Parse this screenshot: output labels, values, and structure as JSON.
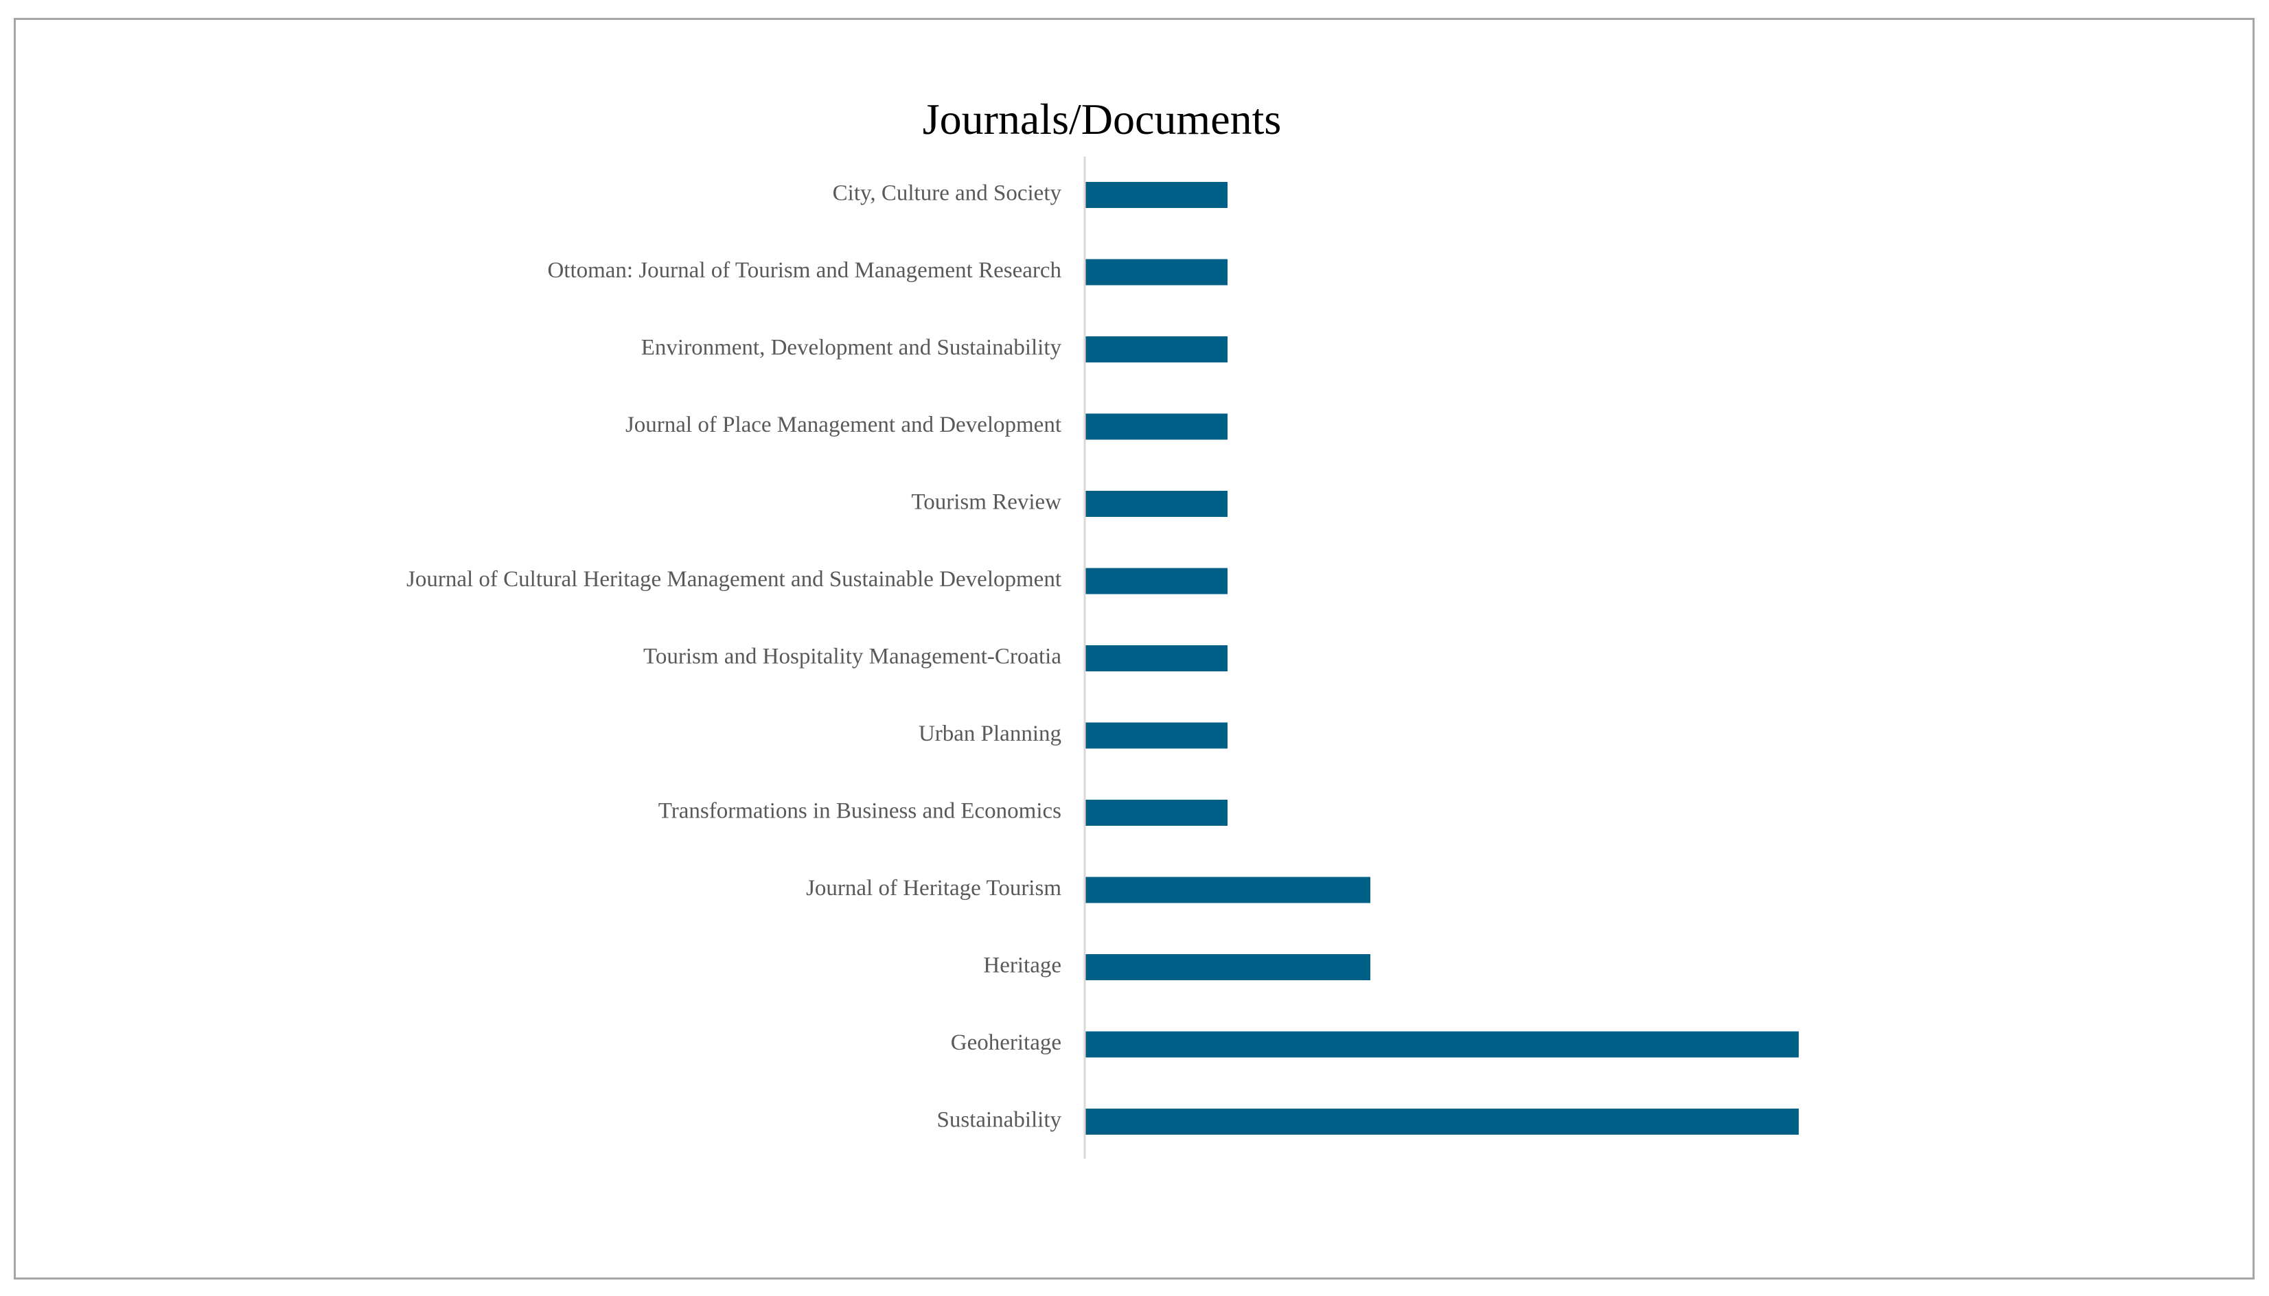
{
  "chart_data": {
    "type": "bar",
    "orientation": "horizontal",
    "title": "Journals/Documents",
    "xlabel": "",
    "ylabel": "",
    "categories": [
      "City, Culture and Society",
      "Ottoman: Journal of Tourism and Management Research",
      "Environment, Development and Sustainability",
      "Journal of Place Management and Development",
      "Tourism Review",
      "Journal of Cultural Heritage Management and Sustainable Development",
      "Tourism and Hospitality Management-Croatia",
      "Urban Planning",
      "Transformations in Business and Economics",
      "Journal of Heritage Tourism",
      "Heritage",
      "Geoheritage",
      "Sustainability"
    ],
    "values": [
      1,
      1,
      1,
      1,
      1,
      1,
      1,
      1,
      1,
      2,
      2,
      5,
      5
    ],
    "xlim": [
      0,
      5
    ],
    "grid": false,
    "legend": "none",
    "colors": {
      "bar": "#005f86",
      "axis": "#d9d9d9",
      "frame": "#a6a6a6"
    }
  }
}
